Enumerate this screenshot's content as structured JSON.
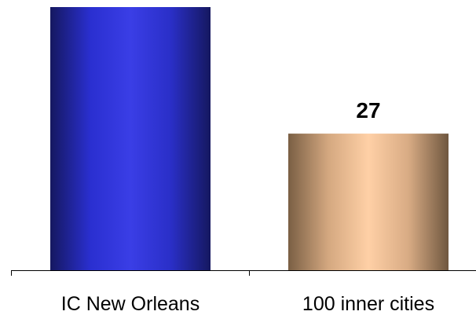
{
  "chart_data": {
    "type": "bar",
    "categories": [
      "IC New Orleans",
      "100 inner cities"
    ],
    "values": [
      52,
      27
    ],
    "data_labels": [
      "",
      "27"
    ],
    "title": "",
    "xlabel": "",
    "ylabel": "",
    "ylim": [
      0,
      52
    ],
    "grid": false,
    "legend": "none",
    "colors": {
      "bar_1": [
        "#151860",
        "#2a2fd0",
        "#3a3ee6",
        "#2a2fc8",
        "#151860"
      ],
      "bar_2": [
        "#7a5f44",
        "#d4a880",
        "#ffd0a6",
        "#d8ab84",
        "#6f573f"
      ]
    }
  }
}
